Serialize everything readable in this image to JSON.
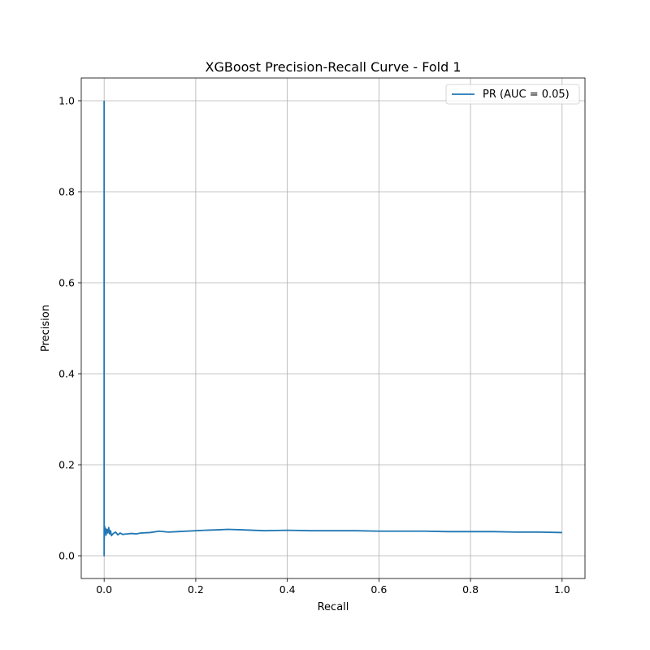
{
  "chart_data": {
    "type": "line",
    "title": "XGBoost Precision-Recall Curve - Fold 1",
    "xlabel": "Recall",
    "ylabel": "Precision",
    "xlim": [
      -0.05,
      1.05
    ],
    "ylim": [
      -0.05,
      1.05
    ],
    "xticks": [
      0.0,
      0.2,
      0.4,
      0.6,
      0.8,
      1.0
    ],
    "yticks": [
      0.0,
      0.2,
      0.4,
      0.6,
      0.8,
      1.0
    ],
    "xtick_labels": [
      "0.0",
      "0.2",
      "0.4",
      "0.6",
      "0.8",
      "1.0"
    ],
    "ytick_labels": [
      "0.0",
      "0.2",
      "0.4",
      "0.6",
      "0.8",
      "1.0"
    ],
    "grid": true,
    "legend_position": "upper right",
    "series": [
      {
        "name": "PR (AUC = 0.05)",
        "color": "#1f77b4",
        "x": [
          0.0,
          0.0,
          0.0,
          0.001,
          0.002,
          0.003,
          0.004,
          0.006,
          0.008,
          0.01,
          0.012,
          0.014,
          0.016,
          0.02,
          0.025,
          0.03,
          0.035,
          0.04,
          0.05,
          0.06,
          0.07,
          0.08,
          0.1,
          0.12,
          0.14,
          0.16,
          0.18,
          0.2,
          0.22,
          0.25,
          0.27,
          0.3,
          0.35,
          0.4,
          0.45,
          0.5,
          0.55,
          0.6,
          0.65,
          0.7,
          0.75,
          0.8,
          0.85,
          0.9,
          0.95,
          1.0
        ],
        "y": [
          1.0,
          0.0,
          0.03,
          0.065,
          0.05,
          0.06,
          0.045,
          0.058,
          0.05,
          0.062,
          0.048,
          0.055,
          0.044,
          0.049,
          0.052,
          0.046,
          0.05,
          0.047,
          0.048,
          0.049,
          0.048,
          0.05,
          0.051,
          0.054,
          0.052,
          0.053,
          0.054,
          0.055,
          0.056,
          0.057,
          0.058,
          0.057,
          0.055,
          0.056,
          0.055,
          0.055,
          0.055,
          0.054,
          0.054,
          0.054,
          0.053,
          0.053,
          0.053,
          0.052,
          0.052,
          0.051
        ]
      }
    ]
  }
}
